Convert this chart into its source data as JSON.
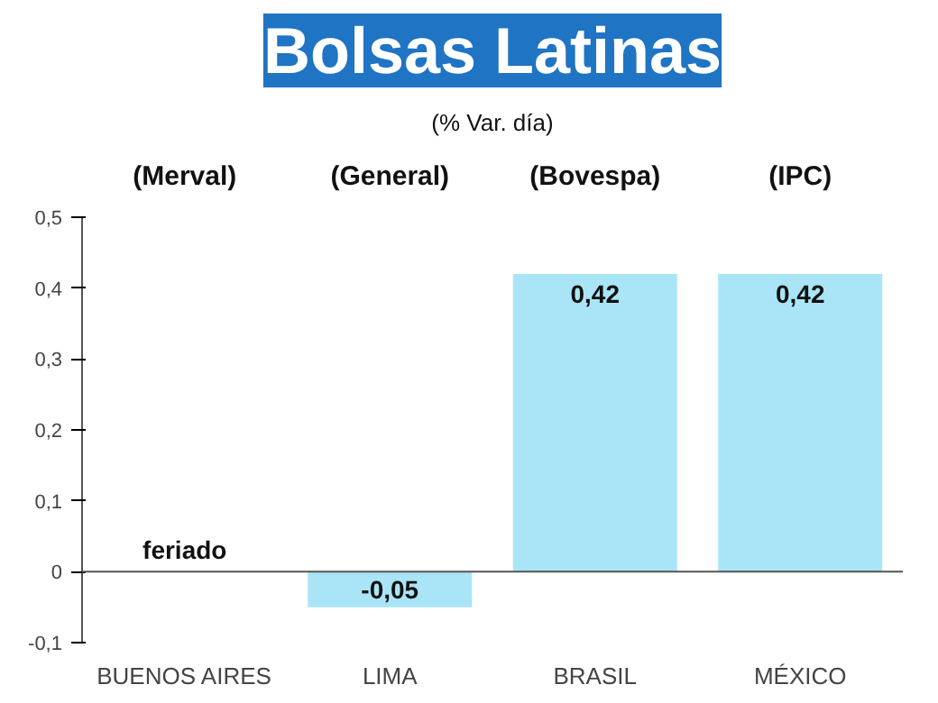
{
  "chart_data": {
    "type": "bar",
    "title": "Bolsas Latinas",
    "subtitle": "(% Var. día)",
    "categories": [
      "BUENOS AIRES",
      "LIMA",
      "BRASIL",
      "MÉXICO"
    ],
    "values": [
      null,
      -0.05,
      0.42,
      0.42
    ],
    "value_labels": [
      "feriado",
      "-0,05",
      "0,42",
      "0,42"
    ],
    "color": "#a9e5f7",
    "ylim": [
      -0.1,
      0.5
    ],
    "yticks": [
      {
        "value": -0.1,
        "label": "-0,1"
      },
      0,
      {
        "value": 0.1,
        "label": "0,1"
      },
      {
        "value": 0.2,
        "label": "0,2"
      },
      {
        "value": 0.3,
        "label": "0,3"
      },
      {
        "value": 0.4,
        "label": "0,4"
      },
      {
        "value": 0.5,
        "label": "0,5"
      }
    ],
    "annotations": [
      "(Merval)",
      "(General)",
      "(Bovespa)",
      "(IPC)"
    ],
    "ref_lines": [
      {
        "axis": "y",
        "value": 0,
        "color": "#555555"
      }
    ],
    "grid": false
  }
}
